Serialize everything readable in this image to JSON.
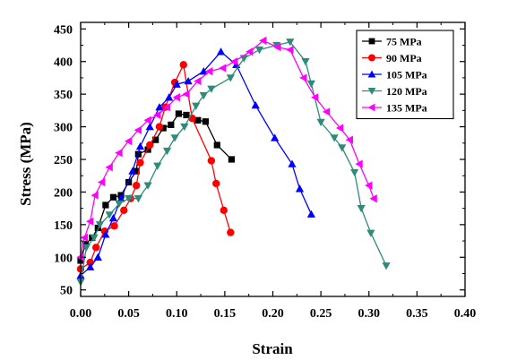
{
  "chart_data": {
    "type": "line",
    "xlabel": "Strain",
    "ylabel": "Stress (MPa)",
    "xlim": [
      0,
      0.4
    ],
    "ylim": [
      40,
      460
    ],
    "x_ticks": [
      "0.00",
      "0.05",
      "0.10",
      "0.15",
      "0.20",
      "0.25",
      "0.30",
      "0.35",
      "0.40"
    ],
    "y_ticks": [
      "50",
      "100",
      "150",
      "200",
      "250",
      "300",
      "350",
      "400",
      "450"
    ],
    "legend_position": "top-right",
    "series": [
      {
        "name": "75 MPa",
        "color": "#000000",
        "marker": "square",
        "points": [
          [
            0.0,
            95
          ],
          [
            0.005,
            120
          ],
          [
            0.012,
            130
          ],
          [
            0.018,
            145
          ],
          [
            0.026,
            180
          ],
          [
            0.034,
            192
          ],
          [
            0.042,
            195
          ],
          [
            0.05,
            215
          ],
          [
            0.058,
            232
          ],
          [
            0.06,
            258
          ],
          [
            0.07,
            265
          ],
          [
            0.078,
            280
          ],
          [
            0.086,
            298
          ],
          [
            0.094,
            303
          ],
          [
            0.102,
            320
          ],
          [
            0.11,
            318
          ],
          [
            0.122,
            310
          ],
          [
            0.13,
            308
          ],
          [
            0.142,
            272
          ],
          [
            0.157,
            250
          ]
        ]
      },
      {
        "name": "90 MPa",
        "color": "#ff0000",
        "marker": "circle",
        "points": [
          [
            0.0,
            82
          ],
          [
            0.01,
            92
          ],
          [
            0.016,
            115
          ],
          [
            0.025,
            140
          ],
          [
            0.035,
            148
          ],
          [
            0.045,
            172
          ],
          [
            0.052,
            190
          ],
          [
            0.058,
            210
          ],
          [
            0.062,
            245
          ],
          [
            0.072,
            272
          ],
          [
            0.082,
            300
          ],
          [
            0.088,
            330
          ],
          [
            0.098,
            368
          ],
          [
            0.107,
            395
          ],
          [
            0.116,
            313
          ],
          [
            0.136,
            248
          ],
          [
            0.141,
            213
          ],
          [
            0.149,
            172
          ],
          [
            0.156,
            138
          ]
        ]
      },
      {
        "name": "105 MPa",
        "color": "#0000ff",
        "marker": "triangle-up",
        "points": [
          [
            0.0,
            72
          ],
          [
            0.01,
            85
          ],
          [
            0.018,
            100
          ],
          [
            0.026,
            135
          ],
          [
            0.034,
            160
          ],
          [
            0.042,
            190
          ],
          [
            0.054,
            232
          ],
          [
            0.062,
            270
          ],
          [
            0.072,
            300
          ],
          [
            0.082,
            330
          ],
          [
            0.092,
            345
          ],
          [
            0.1,
            365
          ],
          [
            0.112,
            370
          ],
          [
            0.128,
            385
          ],
          [
            0.146,
            415
          ],
          [
            0.162,
            395
          ],
          [
            0.182,
            333
          ],
          [
            0.202,
            283
          ],
          [
            0.22,
            243
          ],
          [
            0.228,
            205
          ],
          [
            0.24,
            166
          ]
        ]
      },
      {
        "name": "120 MPa",
        "color": "#2e8b7a",
        "marker": "triangle-down",
        "points": [
          [
            0.0,
            62
          ],
          [
            0.006,
            115
          ],
          [
            0.014,
            130
          ],
          [
            0.02,
            150
          ],
          [
            0.03,
            165
          ],
          [
            0.04,
            182
          ],
          [
            0.05,
            190
          ],
          [
            0.06,
            190
          ],
          [
            0.07,
            210
          ],
          [
            0.08,
            240
          ],
          [
            0.09,
            263
          ],
          [
            0.098,
            283
          ],
          [
            0.108,
            300
          ],
          [
            0.12,
            332
          ],
          [
            0.128,
            348
          ],
          [
            0.136,
            358
          ],
          [
            0.156,
            375
          ],
          [
            0.17,
            405
          ],
          [
            0.186,
            418
          ],
          [
            0.204,
            425
          ],
          [
            0.218,
            430
          ],
          [
            0.234,
            400
          ],
          [
            0.24,
            366
          ],
          [
            0.25,
            307
          ],
          [
            0.264,
            283
          ],
          [
            0.272,
            268
          ],
          [
            0.285,
            230
          ],
          [
            0.292,
            175
          ],
          [
            0.302,
            137
          ],
          [
            0.318,
            87
          ]
        ]
      },
      {
        "name": "135 MPa",
        "color": "#ff00ff",
        "marker": "triangle-left",
        "points": [
          [
            0.0,
            100
          ],
          [
            0.004,
            130
          ],
          [
            0.01,
            155
          ],
          [
            0.015,
            195
          ],
          [
            0.022,
            215
          ],
          [
            0.03,
            238
          ],
          [
            0.04,
            260
          ],
          [
            0.05,
            278
          ],
          [
            0.06,
            295
          ],
          [
            0.07,
            310
          ],
          [
            0.08,
            318
          ],
          [
            0.09,
            330
          ],
          [
            0.1,
            345
          ],
          [
            0.11,
            350
          ],
          [
            0.122,
            370
          ],
          [
            0.134,
            385
          ],
          [
            0.148,
            390
          ],
          [
            0.16,
            400
          ],
          [
            0.176,
            415
          ],
          [
            0.19,
            432
          ],
          [
            0.205,
            422
          ],
          [
            0.218,
            418
          ],
          [
            0.232,
            375
          ],
          [
            0.244,
            345
          ],
          [
            0.256,
            323
          ],
          [
            0.27,
            298
          ],
          [
            0.28,
            280
          ],
          [
            0.29,
            243
          ],
          [
            0.3,
            210
          ],
          [
            0.305,
            190
          ]
        ]
      }
    ]
  }
}
